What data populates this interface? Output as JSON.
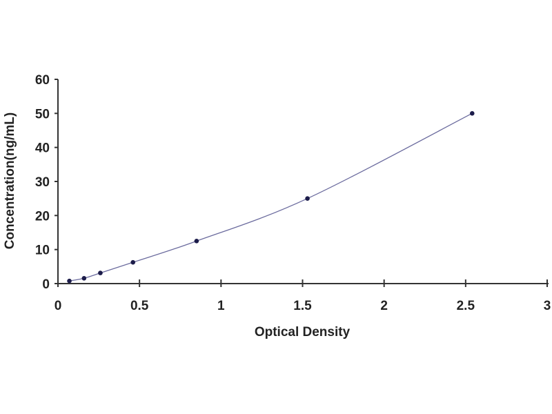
{
  "chart_data": {
    "type": "scatter",
    "title": "",
    "xlabel": "Optical Density",
    "ylabel": "Concentration(ng/mL)",
    "xlim": [
      0,
      3
    ],
    "ylim": [
      0,
      60
    ],
    "xticks": [
      "0",
      "0.5",
      "1",
      "1.5",
      "2",
      "2.5",
      "3"
    ],
    "yticks": [
      "0",
      "10",
      "20",
      "30",
      "40",
      "50",
      "60"
    ],
    "grid": false,
    "legend": "none",
    "fit_line": "smooth curve",
    "colors": {
      "line": "#6b6b9e",
      "marker": "#1c1c4a",
      "axis": "#333333"
    },
    "series": [
      {
        "x": [
          0.07,
          0.16,
          0.26,
          0.46,
          0.85,
          1.53,
          2.54
        ],
        "y": [
          0.78,
          1.56,
          3.12,
          6.25,
          12.5,
          25,
          50
        ]
      }
    ]
  }
}
